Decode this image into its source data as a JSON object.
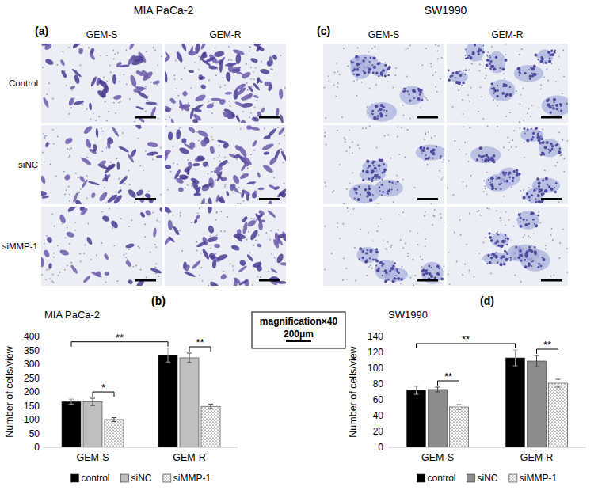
{
  "images": {
    "rows": [
      "Control",
      "siNC",
      "siMMP-1"
    ],
    "panels": [
      {
        "letter": "(a)",
        "title": "MIA PaCa-2",
        "columns": [
          "GEM-S",
          "GEM-R"
        ]
      },
      {
        "letter": "(c)",
        "title": "SW1990",
        "columns": [
          "GEM-S",
          "GEM-R"
        ]
      }
    ],
    "magnification": "magnification×40",
    "scale_bar": "200μm"
  },
  "chart_data": [
    {
      "type": "bar",
      "panel_label": "(b)",
      "title": "MIA PaCa-2",
      "y_label": "Number of cells/view",
      "categories": [
        "GEM-S",
        "GEM-R"
      ],
      "series": [
        {
          "name": "control",
          "color": "#000000",
          "values": [
            165,
            333
          ],
          "errors": [
            9,
            25
          ]
        },
        {
          "name": "siNC",
          "color": "#bfbfbf",
          "values": [
            164,
            323
          ],
          "errors": [
            13,
            17
          ]
        },
        {
          "name": "siMMP-1",
          "color": "#ffffff",
          "values": [
            100,
            148
          ],
          "errors": [
            7,
            8
          ]
        }
      ],
      "ylim": [
        0,
        400
      ],
      "yticks": [
        0,
        50,
        100,
        150,
        200,
        250,
        300,
        350,
        400
      ],
      "grid": false,
      "legend": "bottom",
      "annotations": [
        {
          "text": "**",
          "between": [
            [
              "GEM-S",
              "control"
            ],
            [
              "GEM-R",
              "control"
            ]
          ]
        },
        {
          "text": "*",
          "between": [
            [
              "GEM-S",
              "siNC"
            ],
            [
              "GEM-S",
              "siMMP-1"
            ]
          ]
        },
        {
          "text": "**",
          "between": [
            [
              "GEM-R",
              "siNC"
            ],
            [
              "GEM-R",
              "siMMP-1"
            ]
          ]
        }
      ]
    },
    {
      "type": "bar",
      "panel_label": "(d)",
      "title": "SW1990",
      "y_label": "Number of cells/view",
      "categories": [
        "GEM-S",
        "GEM-R"
      ],
      "series": [
        {
          "name": "control",
          "color": "#000000",
          "values": [
            72,
            113
          ],
          "errors": [
            5,
            10
          ]
        },
        {
          "name": "siNC",
          "color": "#8c8c8c",
          "values": [
            73,
            109
          ],
          "errors": [
            3,
            7
          ]
        },
        {
          "name": "siMMP-1",
          "color": "#ffffff",
          "values": [
            51,
            81
          ],
          "errors": [
            3,
            5
          ]
        }
      ],
      "ylim": [
        0,
        140
      ],
      "yticks": [
        0,
        20,
        40,
        60,
        80,
        100,
        120,
        140
      ],
      "grid": false,
      "legend": "bottom",
      "annotations": [
        {
          "text": "**",
          "between": [
            [
              "GEM-S",
              "control"
            ],
            [
              "GEM-R",
              "control"
            ]
          ]
        },
        {
          "text": "**",
          "between": [
            [
              "GEM-S",
              "siNC"
            ],
            [
              "GEM-S",
              "siMMP-1"
            ]
          ]
        },
        {
          "text": "**",
          "between": [
            [
              "GEM-R",
              "siNC"
            ],
            [
              "GEM-R",
              "siMMP-1"
            ]
          ]
        }
      ]
    }
  ]
}
